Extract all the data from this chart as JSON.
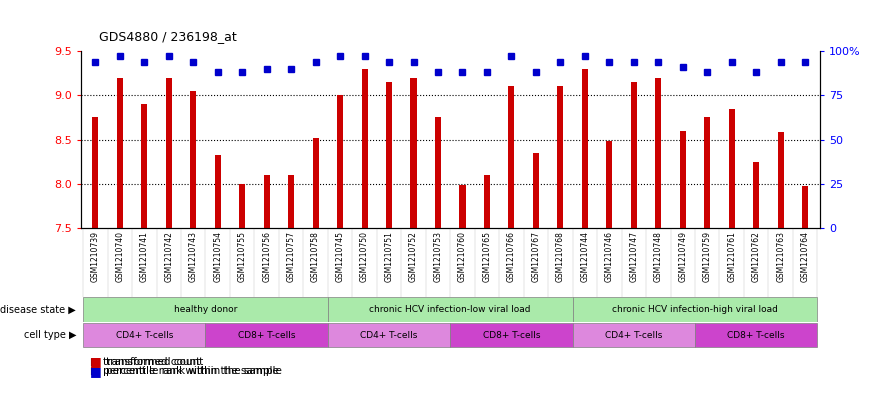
{
  "title": "GDS4880 / 236198_at",
  "samples": [
    "GSM1210739",
    "GSM1210740",
    "GSM1210741",
    "GSM1210742",
    "GSM1210743",
    "GSM1210754",
    "GSM1210755",
    "GSM1210756",
    "GSM1210757",
    "GSM1210758",
    "GSM1210745",
    "GSM1210750",
    "GSM1210751",
    "GSM1210752",
    "GSM1210753",
    "GSM1210760",
    "GSM1210765",
    "GSM1210766",
    "GSM1210767",
    "GSM1210768",
    "GSM1210744",
    "GSM1210746",
    "GSM1210747",
    "GSM1210748",
    "GSM1210749",
    "GSM1210759",
    "GSM1210761",
    "GSM1210762",
    "GSM1210763",
    "GSM1210764"
  ],
  "transformed_count": [
    8.75,
    9.2,
    8.9,
    9.2,
    9.05,
    8.33,
    8.0,
    8.1,
    8.1,
    8.52,
    9.0,
    9.3,
    9.15,
    9.2,
    8.75,
    7.98,
    8.1,
    9.1,
    8.35,
    9.1,
    9.3,
    8.48,
    9.15,
    9.2,
    8.6,
    8.75,
    8.85,
    8.25,
    8.58,
    7.97
  ],
  "percentile_rank": [
    94,
    97,
    94,
    97,
    94,
    88,
    88,
    90,
    90,
    94,
    97,
    97,
    94,
    94,
    88,
    88,
    88,
    97,
    88,
    94,
    97,
    94,
    94,
    94,
    91,
    88,
    94,
    88,
    94,
    94
  ],
  "ylim_left": [
    7.5,
    9.5
  ],
  "ylim_right": [
    0,
    100
  ],
  "yticks_left": [
    7.5,
    8.0,
    8.5,
    9.0,
    9.5
  ],
  "yticks_right": [
    0,
    25,
    50,
    75,
    100
  ],
  "bar_color": "#cc0000",
  "dot_color": "#0000cc",
  "disease_groups": [
    {
      "label": "healthy donor",
      "start": 0,
      "end": 9
    },
    {
      "label": "chronic HCV infection-low viral load",
      "start": 10,
      "end": 19
    },
    {
      "label": "chronic HCV infection-high viral load",
      "start": 20,
      "end": 29
    }
  ],
  "cell_type_groups": [
    {
      "label": "CD4+ T-cells",
      "start": 0,
      "end": 4,
      "color": "#dd88dd"
    },
    {
      "label": "CD8+ T-cells",
      "start": 5,
      "end": 9,
      "color": "#cc44cc"
    },
    {
      "label": "CD4+ T-cells",
      "start": 10,
      "end": 14,
      "color": "#dd88dd"
    },
    {
      "label": "CD8+ T-cells",
      "start": 15,
      "end": 19,
      "color": "#cc44cc"
    },
    {
      "label": "CD4+ T-cells",
      "start": 20,
      "end": 24,
      "color": "#dd88dd"
    },
    {
      "label": "CD8+ T-cells",
      "start": 25,
      "end": 29,
      "color": "#cc44cc"
    }
  ],
  "disease_state_label": "disease state",
  "cell_type_label": "cell type",
  "legend_transformed": "transformed count",
  "legend_percentile": "percentile rank within the sample",
  "sample_bg_color": "#d8d8d8",
  "disease_color": "#aaeaaa",
  "bar_width": 0.25
}
